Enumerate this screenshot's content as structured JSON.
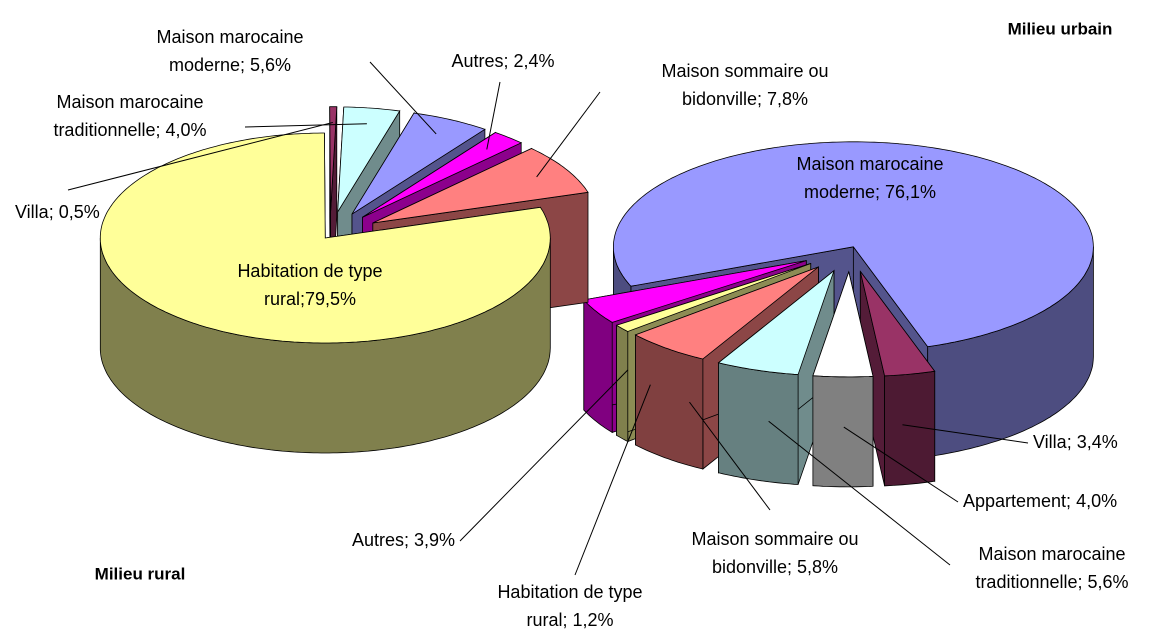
{
  "chart_data": [
    {
      "type": "pie",
      "title": "Milieu urbain",
      "values": [
        76.1,
        3.4,
        4.0,
        5.6,
        5.8,
        1.2,
        3.9
      ],
      "value_labels": [
        [
          "Maison marocaine",
          "moderne; 76,1%"
        ],
        [
          "Villa; 3,4%"
        ],
        [
          "Appartement; 4,0%"
        ],
        [
          "Maison marocaine",
          "traditionnelle; 5,6%"
        ],
        [
          "Maison sommaire ou",
          "bidonville; 5,8%"
        ],
        [
          "Habitation de type",
          "rural; 1,2%"
        ],
        [
          "Autres; 3,9%"
        ]
      ],
      "colors": [
        "#9999ff",
        "#993366",
        "#ffffff",
        "#ccffff",
        "#ff8080",
        "#ffff99",
        "#ff00ff"
      ]
    },
    {
      "type": "pie",
      "title": "Milieu rural",
      "values": [
        79.5,
        0.5,
        4.0,
        5.6,
        2.4,
        7.8
      ],
      "value_labels": [
        [
          "Habitation de type",
          "rural;79,5%"
        ],
        [
          "Villa; 0,5%"
        ],
        [
          "Maison marocaine",
          "traditionnelle; 4,0%"
        ],
        [
          "Maison marocaine",
          "moderne; 5,6%"
        ],
        [
          "Autres; 2,4%"
        ],
        [
          "Maison sommaire ou",
          "bidonville; 7,8%"
        ]
      ],
      "colors": [
        "#ffff99",
        "#993366",
        "#ccffff",
        "#9999ff",
        "#ff00ff",
        "#ff8080"
      ]
    }
  ]
}
